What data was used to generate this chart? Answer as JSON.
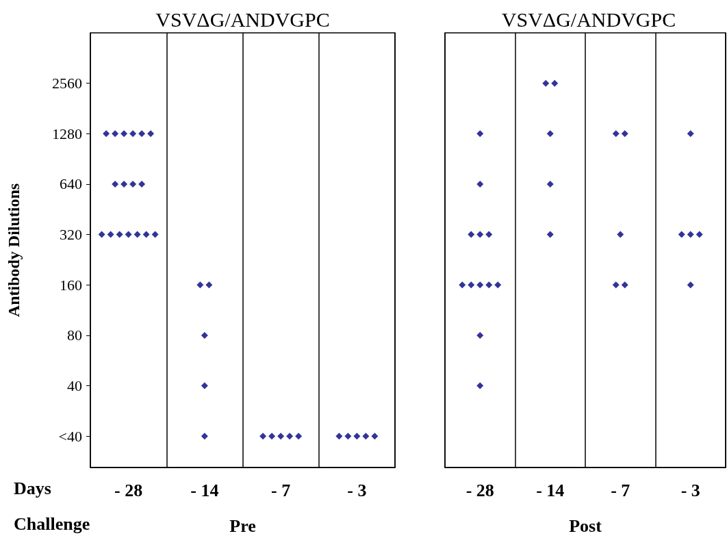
{
  "chart_data": [
    {
      "type": "scatter",
      "title": "VSVΔG/ANDVGPC",
      "xlabel": "Pre",
      "ylabel": "Antibody Dilutions",
      "annotations": [
        "Days",
        "Challenge"
      ],
      "categories": [
        "- 28",
        "- 14",
        "- 7",
        "- 3"
      ],
      "series": [
        {
          "color": "#000080",
          "x": [
            "- 28",
            "- 28",
            "- 28",
            "- 28",
            "- 28",
            "- 28",
            "- 28",
            "- 28",
            "- 28",
            "- 28",
            "- 28",
            "- 28",
            "- 28",
            "- 28",
            "- 28",
            "- 28",
            "- 28",
            "- 14",
            "- 14",
            "- 14",
            "- 14",
            "- 14",
            "- 7",
            "- 7",
            "- 7",
            "- 7",
            "- 7",
            "- 3",
            "- 3",
            "- 3",
            "- 3",
            "- 3"
          ],
          "values": [
            1280,
            1280,
            1280,
            1280,
            1280,
            1280,
            640,
            640,
            640,
            640,
            320,
            320,
            320,
            320,
            320,
            320,
            320,
            160,
            160,
            80,
            40,
            20,
            20,
            20,
            20,
            20,
            20,
            20,
            20,
            20,
            20,
            20
          ]
        }
      ],
      "log": "y",
      "ylim": [
        13,
        5120
      ],
      "yticks": [
        {
          "value": 20,
          "label": "<40"
        },
        40,
        80,
        160,
        320,
        640,
        1280,
        2560
      ],
      "grid": "x",
      "marker": "diamond"
    },
    {
      "type": "scatter",
      "title": "VSVΔG/ANDVGPC",
      "xlabel": "Post",
      "categories": [
        "- 28",
        "- 14",
        "- 7",
        "- 3"
      ],
      "series": [
        {
          "color": "#000080",
          "x": [
            "- 28",
            "- 28",
            "- 28",
            "- 28",
            "- 28",
            "- 28",
            "- 28",
            "- 28",
            "- 28",
            "- 28",
            "- 28",
            "- 28",
            "- 14",
            "- 14",
            "- 14",
            "- 14",
            "- 14",
            "- 7",
            "- 7",
            "- 7",
            "- 7",
            "- 7",
            "- 3",
            "- 3",
            "- 3",
            "- 3",
            "- 3"
          ],
          "values": [
            1280,
            640,
            320,
            320,
            320,
            160,
            160,
            160,
            160,
            160,
            80,
            40,
            2560,
            2560,
            1280,
            640,
            320,
            1280,
            1280,
            320,
            160,
            160,
            1280,
            320,
            320,
            320,
            160
          ]
        }
      ],
      "log": "y",
      "ylim": [
        13,
        5120
      ],
      "grid": "x",
      "marker": "diamond",
      "tick_labels": "x"
    }
  ]
}
